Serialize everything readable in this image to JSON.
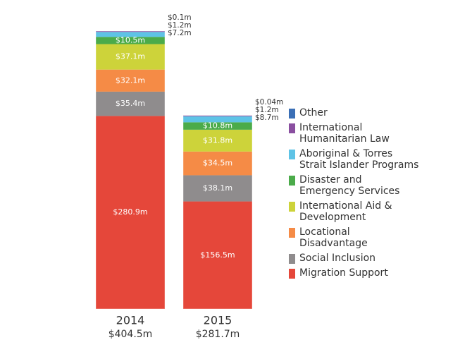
{
  "chart_data": {
    "type": "stacked_bar",
    "categories": [
      "2014",
      "2015"
    ],
    "totals": {
      "values": [
        404.5,
        281.7
      ],
      "value_labels": [
        "$404.5m",
        "$281.7m"
      ]
    },
    "series": [
      {
        "name": "Other",
        "color": "#3b6fb6",
        "values": [
          0.1,
          0.04
        ],
        "value_labels": [
          "$0.1m",
          "$0.04m"
        ]
      },
      {
        "name": "International\nHumanitarian Law",
        "color": "#8a4fa0",
        "values": [
          1.2,
          1.2
        ],
        "value_labels": [
          "$1.2m",
          "$1.2m"
        ]
      },
      {
        "name": "Aboriginal & Torres\nStrait Islander Programs",
        "color": "#5ec3e6",
        "values": [
          7.2,
          8.7
        ],
        "value_labels": [
          "$7.2m",
          "$8.7m"
        ]
      },
      {
        "name": "Disaster and\nEmergency Services",
        "color": "#4bab4a",
        "values": [
          10.5,
          10.8
        ],
        "value_labels": [
          "$10.5m",
          "$10.8m"
        ]
      },
      {
        "name": "International Aid &\nDevelopment",
        "color": "#cdd33a",
        "values": [
          37.1,
          31.8
        ],
        "value_labels": [
          "$37.1m",
          "$31.8m"
        ]
      },
      {
        "name": "Locational\nDisadvantage",
        "color": "#f58b46",
        "values": [
          32.1,
          34.5
        ],
        "value_labels": [
          "$32.1m",
          "$34.5m"
        ]
      },
      {
        "name": "Social Inclusion",
        "color": "#8f8c8d",
        "values": [
          35.4,
          38.1
        ],
        "value_labels": [
          "$35.4m",
          "$38.1m"
        ]
      },
      {
        "name": "Migration Support",
        "color": "#e5473a",
        "values": [
          280.9,
          156.5
        ],
        "value_labels": [
          "$280.9m",
          "$156.5m"
        ]
      }
    ]
  }
}
